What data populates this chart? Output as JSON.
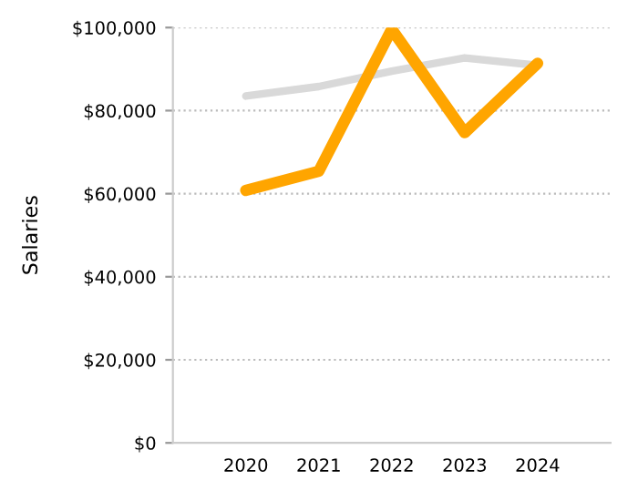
{
  "chart_data": {
    "type": "line",
    "ylabel": "Salaries",
    "categories": [
      "2020",
      "2021",
      "2022",
      "2023",
      "2024"
    ],
    "series": [
      {
        "color": "#d9d9d9",
        "values": [
          83500,
          85800,
          89500,
          92700,
          90900
        ]
      },
      {
        "color": "#ffa500",
        "values": [
          60800,
          65400,
          99600,
          74700,
          91400
        ]
      }
    ],
    "ylim": [
      0,
      100000
    ],
    "yticks": [
      {
        "value": 0,
        "label": "$0"
      },
      {
        "value": 20000,
        "label": "$20,000"
      },
      {
        "value": 40000,
        "label": "$40,000"
      },
      {
        "value": 60000,
        "label": "$60,000"
      },
      {
        "value": 80000,
        "label": "$80,000"
      },
      {
        "value": 100000,
        "label": "$100,000"
      }
    ],
    "grid": "y",
    "marker": "none",
    "line_style": "solid"
  }
}
